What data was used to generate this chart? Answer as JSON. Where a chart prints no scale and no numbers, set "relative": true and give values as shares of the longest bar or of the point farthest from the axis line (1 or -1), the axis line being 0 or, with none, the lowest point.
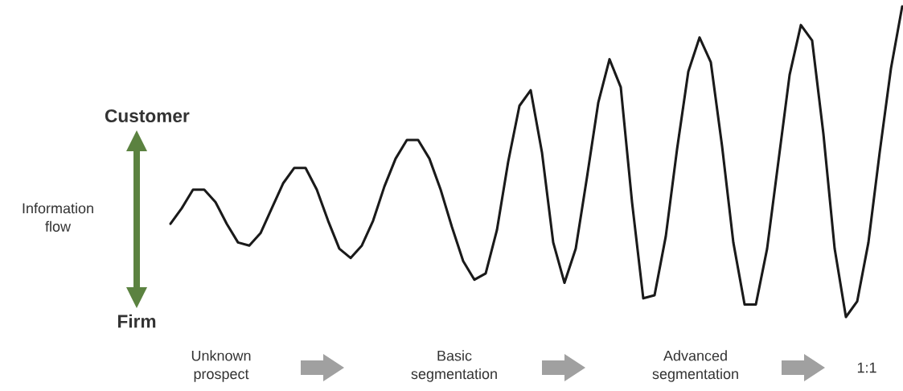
{
  "chart_data": {
    "type": "line",
    "relative": true,
    "ylabel": "Information flow",
    "categories": [
      null,
      null,
      null,
      null,
      null,
      null,
      null,
      null,
      null,
      null,
      null,
      null,
      null,
      null,
      null,
      null,
      null,
      null,
      null,
      null,
      null,
      null,
      null,
      null,
      null,
      null,
      null,
      null,
      null,
      null,
      null,
      null,
      null,
      null,
      null,
      null,
      null,
      null,
      null,
      null,
      null,
      null,
      null,
      null,
      null,
      null,
      null,
      null,
      null,
      null,
      null,
      null,
      null,
      null,
      null,
      null,
      null,
      null,
      null,
      null,
      null,
      null,
      null,
      null,
      null,
      null
    ],
    "tick_labels": false,
    "marker": "none",
    "line_style": "solid",
    "series": [
      {
        "color": "#1a1a1a",
        "values": [
          0.3,
          0.35,
          0.41,
          0.41,
          0.37,
          0.3,
          0.24,
          0.23,
          0.27,
          0.35,
          0.43,
          0.48,
          0.48,
          0.41,
          0.31,
          0.22,
          0.19,
          0.23,
          0.31,
          0.42,
          0.51,
          0.57,
          0.57,
          0.51,
          0.41,
          0.29,
          0.18,
          0.12,
          0.14,
          0.28,
          0.5,
          0.68,
          0.73,
          0.53,
          0.24,
          0.11,
          0.22,
          0.45,
          0.69,
          0.83,
          0.74,
          0.37,
          0.06,
          0.07,
          0.26,
          0.54,
          0.79,
          0.9,
          0.82,
          0.55,
          0.24,
          0.04,
          0.04,
          0.22,
          0.5,
          0.78,
          0.94,
          0.89,
          0.59,
          0.22,
          0.0,
          0.05,
          0.24,
          0.53,
          0.8,
          1.0
        ]
      }
    ],
    "annotations": [
      "Customer",
      "Firm",
      "Unknown prospect",
      "Basic segmentation",
      "Advanced segmentation",
      "1:1"
    ]
  }
}
